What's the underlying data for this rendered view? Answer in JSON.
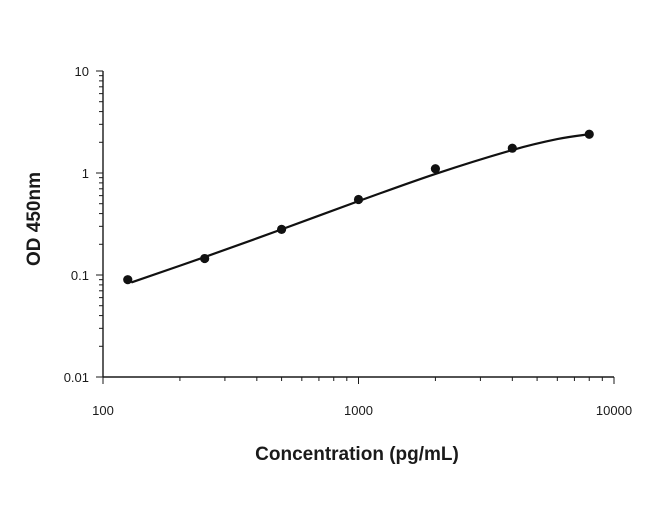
{
  "chart_data": {
    "type": "scatter",
    "title": "",
    "xlabel": "Concentration (pg/mL)",
    "ylabel": "OD 450nm",
    "x_scale": "log",
    "y_scale": "log",
    "xlim": [
      100,
      10000
    ],
    "ylim": [
      0.01,
      10
    ],
    "x_ticks": [
      "100",
      "1000",
      "10000"
    ],
    "y_ticks": [
      "10",
      "1",
      "0.1",
      "0.01"
    ],
    "grid": false,
    "legend": "none",
    "colors": {
      "axis": "#1a1a1a",
      "points": "#111111",
      "curve": "#111111"
    },
    "series": [
      {
        "points": [
          {
            "x": 125,
            "y": 0.09
          },
          {
            "x": 250,
            "y": 0.145
          },
          {
            "x": 500,
            "y": 0.28
          },
          {
            "x": 1000,
            "y": 0.55
          },
          {
            "x": 2000,
            "y": 1.1
          },
          {
            "x": 4000,
            "y": 1.75
          },
          {
            "x": 8000,
            "y": 2.4
          }
        ]
      }
    ],
    "fit_curve": {
      "type": "4PL",
      "points": [
        {
          "x": 130,
          "y": 0.085
        },
        {
          "x": 250,
          "y": 0.15
        },
        {
          "x": 500,
          "y": 0.28
        },
        {
          "x": 1000,
          "y": 0.53
        },
        {
          "x": 2000,
          "y": 0.98
        },
        {
          "x": 4000,
          "y": 1.68
        },
        {
          "x": 6000,
          "y": 2.15
        },
        {
          "x": 8000,
          "y": 2.4
        }
      ]
    }
  }
}
